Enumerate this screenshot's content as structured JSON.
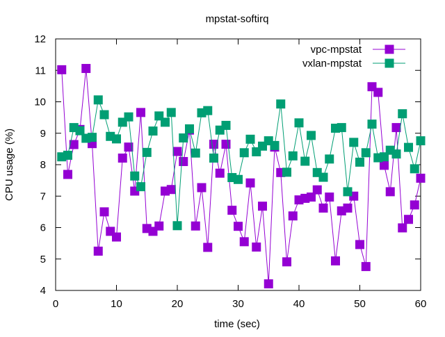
{
  "chart_data": {
    "type": "line",
    "title": "mpstat-softirq",
    "xlabel": "time (sec)",
    "ylabel": "CPU usage (%)",
    "xlim": [
      0,
      60
    ],
    "ylim": [
      4,
      12
    ],
    "xticks": [
      0,
      10,
      20,
      30,
      40,
      50,
      60
    ],
    "yticks": [
      4,
      5,
      6,
      7,
      8,
      9,
      10,
      11,
      12
    ],
    "grid": false,
    "legend_position": "top-right",
    "x": [
      1,
      2,
      3,
      4,
      5,
      6,
      7,
      8,
      9,
      10,
      11,
      12,
      13,
      14,
      15,
      16,
      17,
      18,
      19,
      20,
      21,
      22,
      23,
      24,
      25,
      26,
      27,
      28,
      29,
      30,
      31,
      32,
      33,
      34,
      35,
      36,
      37,
      38,
      39,
      40,
      41,
      42,
      43,
      44,
      45,
      46,
      47,
      48,
      49,
      50,
      51,
      52,
      53,
      54,
      55,
      56,
      57,
      58,
      59,
      60
    ],
    "series": [
      {
        "name": "vpc-mpstat",
        "color": "#9400d3",
        "values": [
          11.02,
          7.69,
          8.64,
          9.12,
          11.06,
          8.67,
          5.25,
          6.5,
          5.88,
          5.7,
          8.21,
          8.56,
          7.16,
          9.66,
          5.97,
          5.88,
          6.05,
          7.16,
          7.21,
          8.42,
          8.1,
          9.1,
          6.05,
          7.27,
          5.37,
          8.65,
          7.73,
          8.65,
          6.55,
          6.04,
          5.55,
          7.42,
          5.38,
          6.68,
          4.21,
          8.56,
          7.75,
          4.91,
          6.37,
          6.88,
          6.93,
          6.97,
          7.2,
          6.62,
          6.97,
          4.94,
          6.53,
          6.62,
          7.0,
          5.46,
          4.76,
          10.48,
          10.3,
          7.98,
          7.14,
          9.18,
          5.99,
          6.26,
          6.72,
          7.57
        ]
      },
      {
        "name": "vxlan-mpstat",
        "color": "#009e73",
        "values": [
          8.25,
          8.3,
          9.18,
          9.08,
          8.84,
          8.87,
          10.06,
          9.59,
          8.9,
          8.82,
          9.35,
          9.52,
          7.64,
          7.3,
          8.39,
          9.07,
          9.55,
          9.35,
          9.66,
          6.06,
          8.85,
          9.14,
          8.37,
          9.65,
          9.72,
          8.21,
          9.1,
          9.25,
          7.59,
          7.53,
          8.38,
          8.81,
          8.41,
          8.59,
          8.76,
          8.61,
          9.93,
          7.76,
          8.28,
          9.33,
          8.11,
          8.93,
          7.75,
          7.6,
          8.18,
          9.16,
          9.18,
          7.14,
          8.71,
          8.08,
          8.38,
          9.29,
          8.22,
          8.25,
          8.46,
          8.34,
          9.62,
          8.55,
          7.87,
          8.76
        ]
      }
    ]
  }
}
